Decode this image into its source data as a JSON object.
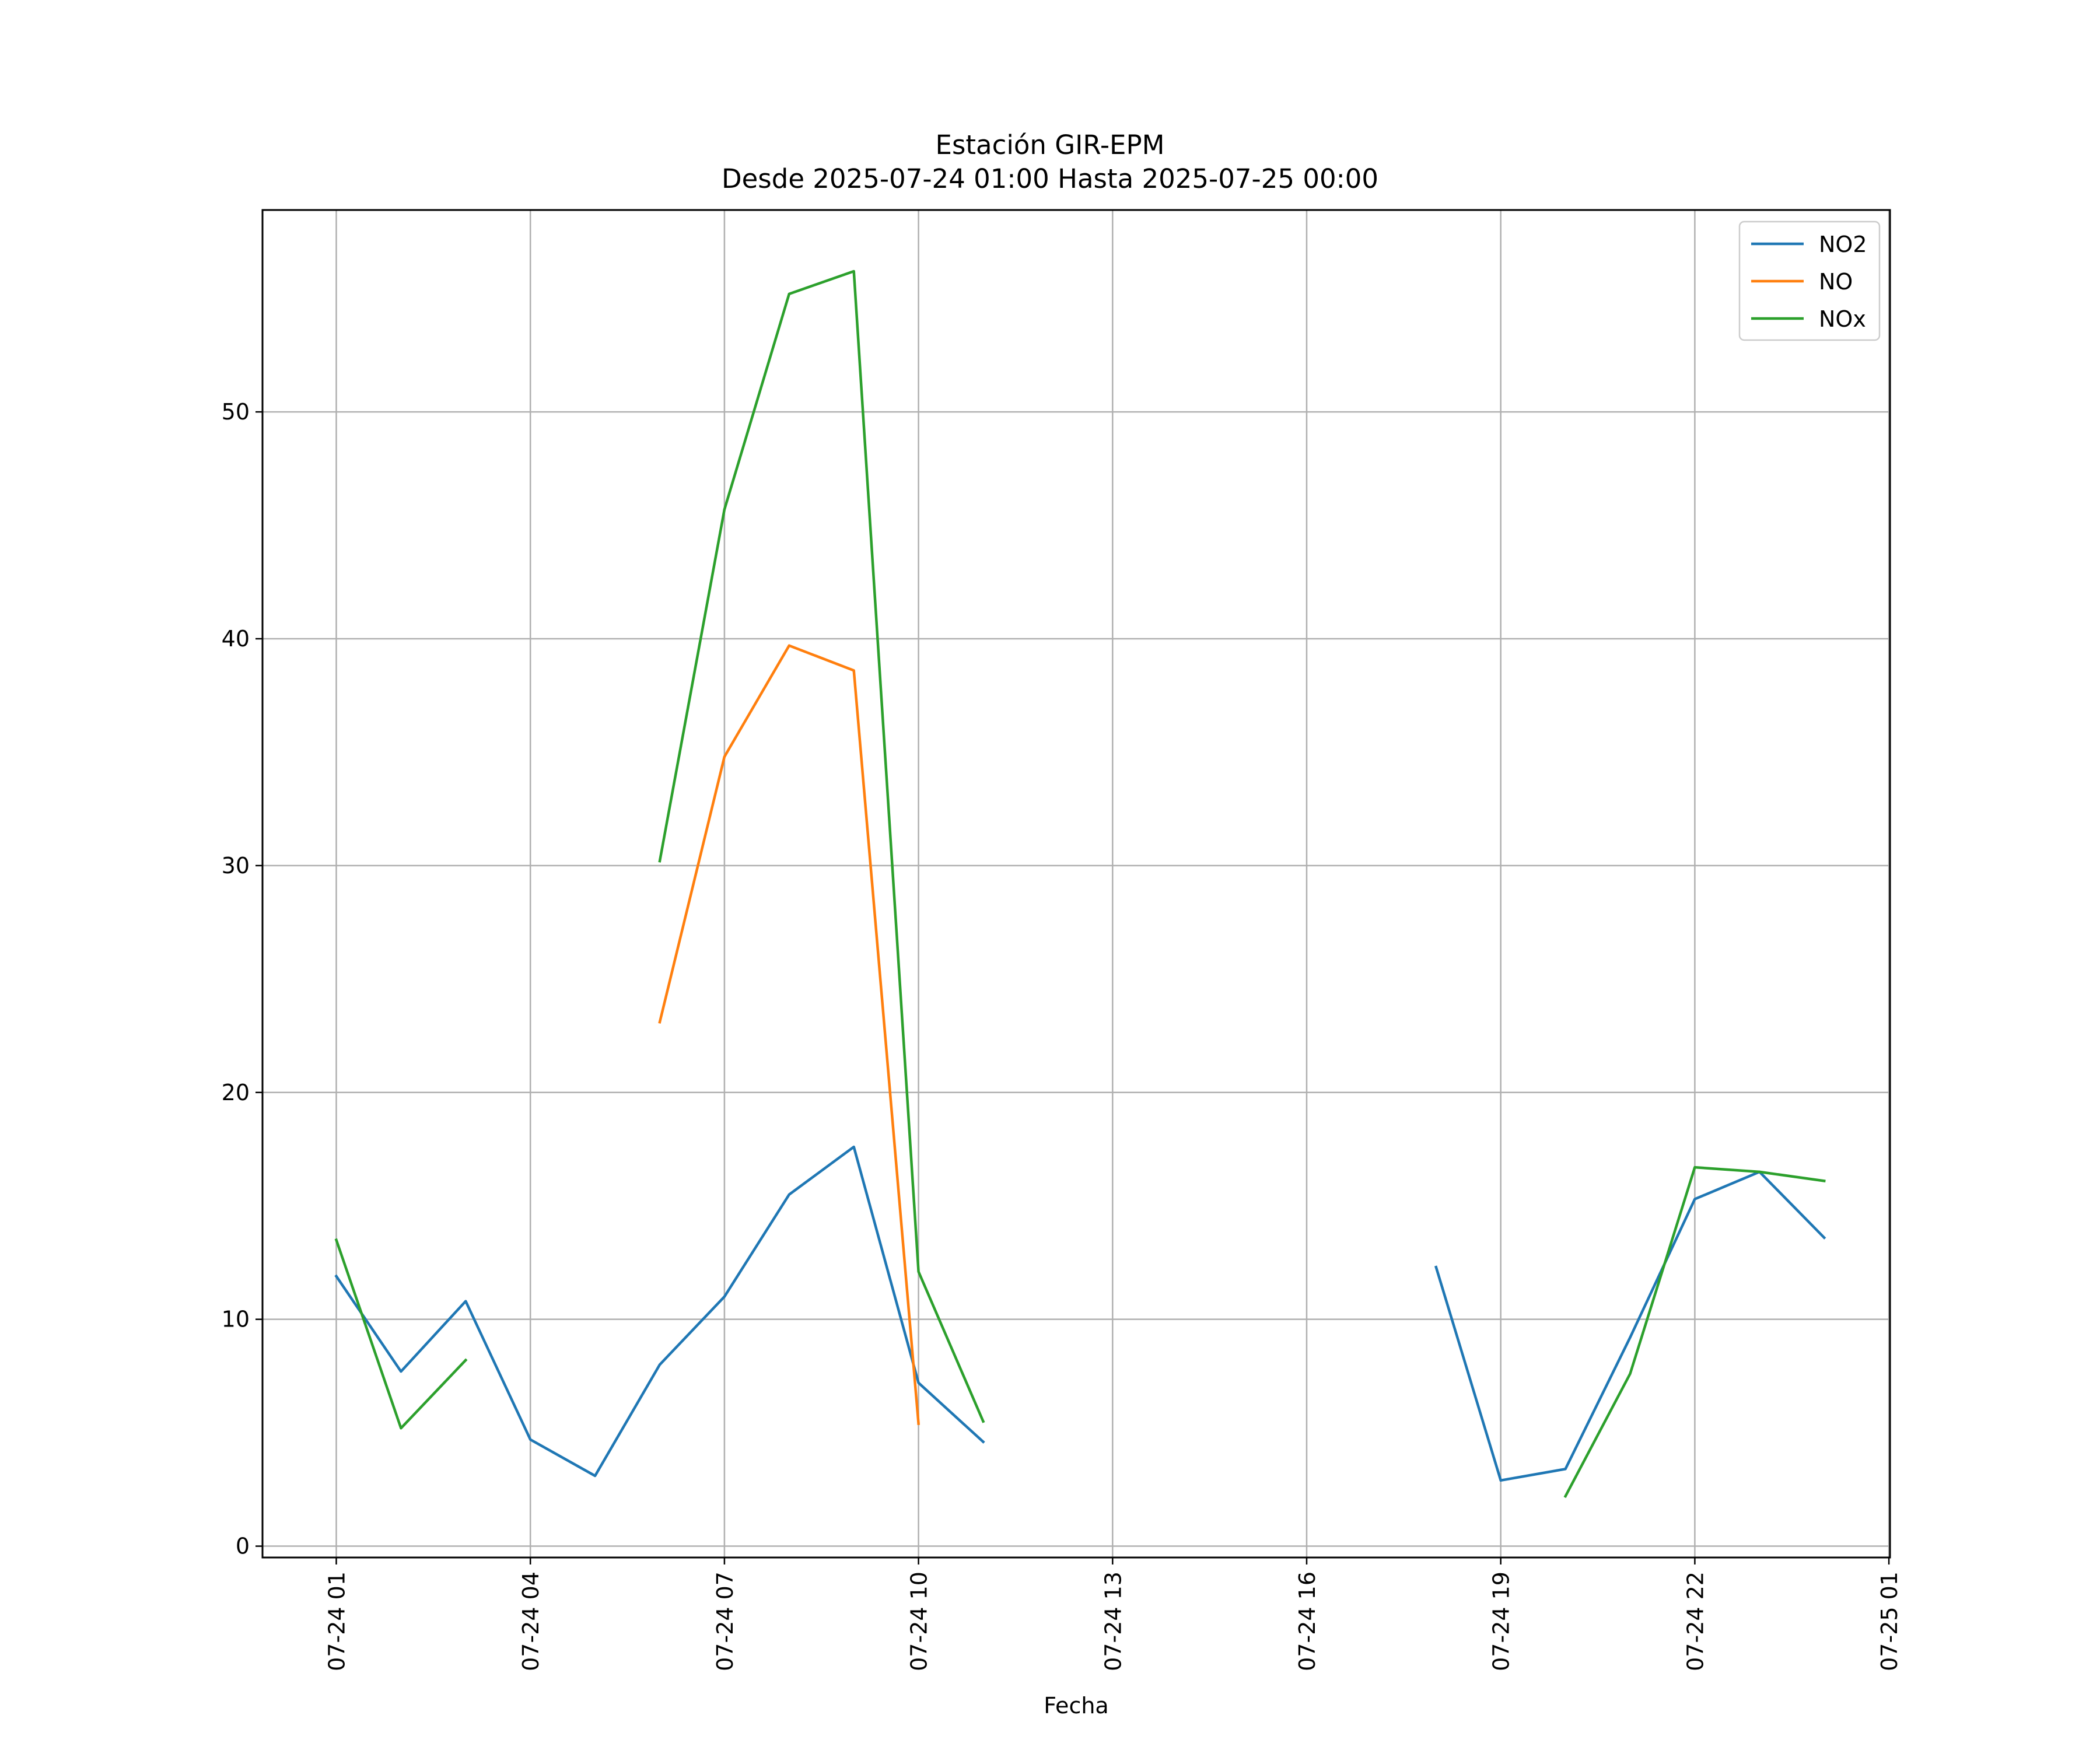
{
  "chart_data": {
    "type": "line",
    "title": "Estación GIR-EPM",
    "subtitle": "Desde 2025-07-24 01:00 Hasta 2025-07-25 00:00",
    "xlabel": "Fecha",
    "ylabel": "",
    "x_ticks": [
      "07-24 01",
      "07-24 04",
      "07-24 07",
      "07-24 10",
      "07-24 13",
      "07-24 16",
      "07-24 19",
      "07-24 22",
      "07-25 01"
    ],
    "y_ticks": [
      0,
      10,
      20,
      30,
      40,
      50
    ],
    "ylim": [
      -0.5,
      58.9
    ],
    "grid": true,
    "legend_position": "top-right",
    "x": [
      "07-24 01",
      "07-24 02",
      "07-24 03",
      "07-24 04",
      "07-24 05",
      "07-24 06",
      "07-24 07",
      "07-24 08",
      "07-24 09",
      "07-24 10",
      "07-24 11",
      "07-24 12",
      "07-24 13",
      "07-24 14",
      "07-24 15",
      "07-24 16",
      "07-24 17",
      "07-24 18",
      "07-24 19",
      "07-24 20",
      "07-24 21",
      "07-24 22",
      "07-24 23",
      "07-25 00"
    ],
    "series": [
      {
        "name": "NO2",
        "color": "#1f77b4",
        "values": [
          11.9,
          7.7,
          10.8,
          4.7,
          3.1,
          8.0,
          11.0,
          15.5,
          17.6,
          7.2,
          4.6,
          null,
          null,
          null,
          null,
          null,
          null,
          12.3,
          2.9,
          3.4,
          9.2,
          15.3,
          16.5,
          13.6
        ]
      },
      {
        "name": "NO",
        "color": "#ff7f0e",
        "values": [
          null,
          null,
          null,
          null,
          null,
          23.1,
          34.8,
          39.7,
          38.6,
          5.4,
          null,
          null,
          null,
          null,
          null,
          null,
          null,
          null,
          null,
          null,
          null,
          null,
          null,
          null
        ]
      },
      {
        "name": "NOx",
        "color": "#2ca02c",
        "values": [
          13.5,
          5.2,
          8.2,
          null,
          null,
          30.2,
          45.7,
          55.2,
          56.2,
          12.1,
          5.5,
          null,
          null,
          null,
          null,
          null,
          null,
          null,
          null,
          2.2,
          7.6,
          16.7,
          16.5,
          16.1
        ]
      }
    ]
  }
}
